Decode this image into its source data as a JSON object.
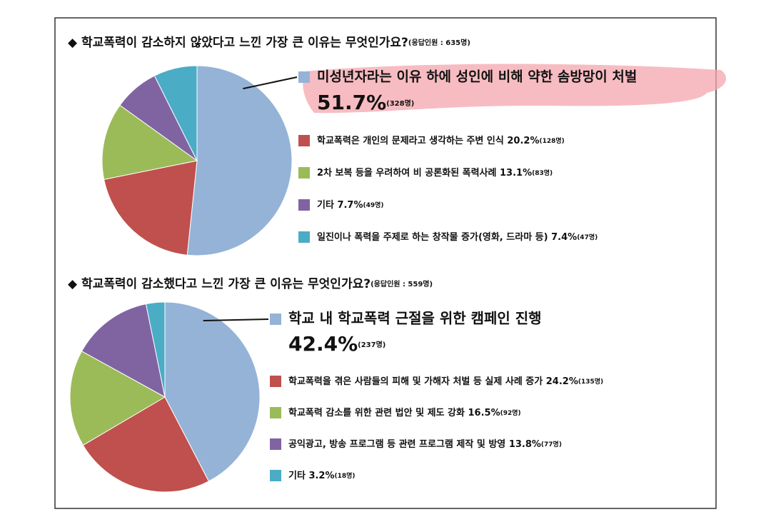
{
  "chart_data": [
    {
      "type": "pie",
      "title": "◆ 학교폭력이 감소하지 않았다고 느낀 가장 큰 이유는 무엇인가요?",
      "subtitle": "(응답인원 : 635명)",
      "categories": [
        "미성년자라는 이유 하에 성인에 비해 약한 솜방망이 처벌",
        "학교폭력은 개인의 문제라고 생각하는 주변 인식",
        "2차 보복 등을 우려하여 비 공론화된 폭력사례",
        "기타",
        "일진이나 폭력을 주제로 하는 창작물 증가(영화, 드라마 등)"
      ],
      "values": [
        51.7,
        20.2,
        13.1,
        7.7,
        7.4
      ],
      "value_labels": [
        "51.7%",
        "20.2%",
        "13.1%",
        "7.7%",
        "7.4%"
      ],
      "count_labels": [
        "(328명)",
        "(128명)",
        "(83명)",
        "(49명)",
        "(47명)"
      ],
      "colors": [
        "#95b3d7",
        "#c0504d",
        "#9bbb59",
        "#8064a2",
        "#4bacc6"
      ]
    },
    {
      "type": "pie",
      "title": "◆ 학교폭력이 감소했다고 느낀 가장 큰 이유는 무엇인가요?",
      "subtitle": "(응답인원 : 559명)",
      "categories": [
        "학교 내 학교폭력 근절을 위한 캠페인 진행",
        "학교폭력을 겪은 사람들의 피해 및 가해자 처벌 등 실제 사례 증가",
        "학교폭력 감소를 위한 관련 법안 및 제도 강화",
        "공익광고, 방송 프로그램 등 관련 프로그램 제작 및 방영",
        "기타"
      ],
      "values": [
        42.4,
        24.2,
        16.5,
        13.8,
        3.2
      ],
      "value_labels": [
        "42.4%",
        "24.2%",
        "16.5%",
        "13.8%",
        "3.2%"
      ],
      "count_labels": [
        "(237명)",
        "(135명)",
        "(92명)",
        "(77명)",
        "(18명)"
      ],
      "colors": [
        "#95b3d7",
        "#c0504d",
        "#9bbb59",
        "#8064a2",
        "#4bacc6"
      ]
    }
  ]
}
